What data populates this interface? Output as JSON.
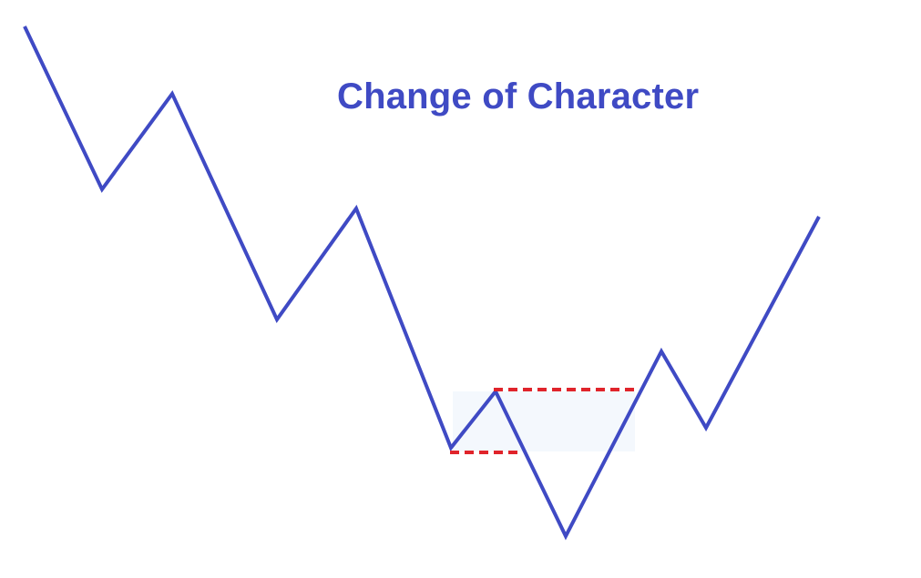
{
  "title": "Change of Character",
  "colors": {
    "line": "#3f4ac4",
    "title": "#3f4ac4",
    "dashed_level": "#e0242b",
    "highlight_zone": "#f4f8fd",
    "background": "#ffffff"
  }
}
